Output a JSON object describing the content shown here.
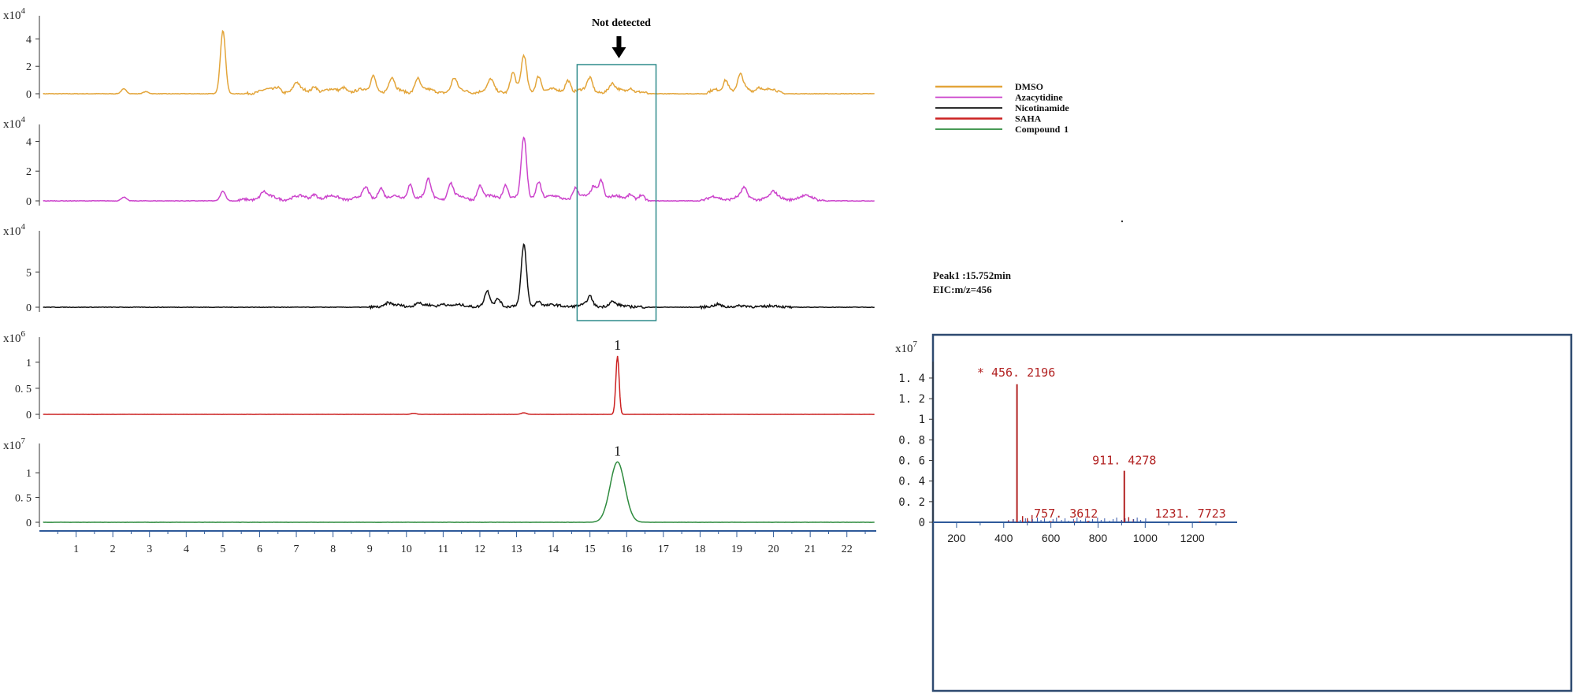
{
  "chart_data": [
    {
      "type": "line",
      "subtype": "stacked-chromatograms",
      "x_ticks": [
        "1",
        "2",
        "3",
        "4",
        "5",
        "6",
        "7",
        "8",
        "9",
        "10",
        "11",
        "12",
        "13",
        "14",
        "15",
        "16",
        "17",
        "18",
        "19",
        "20",
        "21",
        "22"
      ],
      "xlim": [
        0,
        22.8
      ],
      "traces": [
        {
          "name": "DMSO",
          "color": "#E3A53A",
          "scale_label": "x10",
          "scale_exp": "4",
          "y_ticks": [
            "0",
            "2",
            "4"
          ],
          "ylim": [
            0,
            5
          ],
          "peaks": [
            {
              "x": 2.3,
              "y": 0.35
            },
            {
              "x": 2.9,
              "y": 0.15
            },
            {
              "x": 5.0,
              "y": 4.6
            },
            {
              "x": 6.5,
              "y": 0.3
            },
            {
              "x": 7.0,
              "y": 0.55
            },
            {
              "x": 7.5,
              "y": 0.45
            },
            {
              "x": 8.3,
              "y": 0.35
            },
            {
              "x": 9.1,
              "y": 1.15
            },
            {
              "x": 9.6,
              "y": 0.9
            },
            {
              "x": 10.3,
              "y": 0.95
            },
            {
              "x": 11.3,
              "y": 0.85
            },
            {
              "x": 12.3,
              "y": 0.75
            },
            {
              "x": 12.9,
              "y": 1.35
            },
            {
              "x": 13.2,
              "y": 2.5
            },
            {
              "x": 13.6,
              "y": 1.2
            },
            {
              "x": 14.4,
              "y": 0.9
            },
            {
              "x": 15.0,
              "y": 0.9
            },
            {
              "x": 15.6,
              "y": 0.45
            },
            {
              "x": 16.1,
              "y": 0.35
            },
            {
              "x": 18.7,
              "y": 0.9
            },
            {
              "x": 19.1,
              "y": 1.0
            },
            {
              "x": 19.6,
              "y": 0.4
            }
          ],
          "humps": [
            {
              "from": 5.6,
              "to": 16.6,
              "y": 0.35
            },
            {
              "from": 18.1,
              "to": 20.3,
              "y": 0.45
            }
          ]
        },
        {
          "name": "Azacytidine",
          "color": "#CC44CC",
          "scale_label": "x10",
          "scale_exp": "4",
          "y_ticks": [
            "0",
            "2",
            "4"
          ],
          "ylim": [
            0,
            4.5
          ],
          "peaks": [
            {
              "x": 2.3,
              "y": 0.25
            },
            {
              "x": 5.0,
              "y": 0.65
            },
            {
              "x": 6.1,
              "y": 0.35
            },
            {
              "x": 7.5,
              "y": 0.35
            },
            {
              "x": 8.9,
              "y": 0.6
            },
            {
              "x": 9.3,
              "y": 0.8
            },
            {
              "x": 10.1,
              "y": 1.0
            },
            {
              "x": 10.6,
              "y": 1.15
            },
            {
              "x": 11.2,
              "y": 1.0
            },
            {
              "x": 12.0,
              "y": 0.85
            },
            {
              "x": 12.7,
              "y": 1.0
            },
            {
              "x": 13.2,
              "y": 4.0
            },
            {
              "x": 13.6,
              "y": 1.2
            },
            {
              "x": 14.6,
              "y": 0.7
            },
            {
              "x": 15.1,
              "y": 0.8
            },
            {
              "x": 15.3,
              "y": 1.3
            },
            {
              "x": 16.1,
              "y": 0.35
            },
            {
              "x": 16.4,
              "y": 0.25
            },
            {
              "x": 19.2,
              "y": 0.55
            },
            {
              "x": 20.0,
              "y": 0.3
            }
          ],
          "humps": [
            {
              "from": 5.4,
              "to": 16.6,
              "y": 0.35
            },
            {
              "from": 18.0,
              "to": 21.5,
              "y": 0.35
            }
          ]
        },
        {
          "name": "Nicotinamide",
          "color": "#111111",
          "scale_label": "x10",
          "scale_exp": "4",
          "y_ticks": [
            "0",
            "5"
          ],
          "ylim": [
            0,
            9.5
          ],
          "peaks": [
            {
              "x": 9.5,
              "y": 0.4
            },
            {
              "x": 10.3,
              "y": 0.5
            },
            {
              "x": 11.0,
              "y": 0.45
            },
            {
              "x": 12.2,
              "y": 2.0
            },
            {
              "x": 12.5,
              "y": 1.0
            },
            {
              "x": 13.2,
              "y": 8.6
            },
            {
              "x": 13.6,
              "y": 0.8
            },
            {
              "x": 15.0,
              "y": 1.3
            },
            {
              "x": 15.6,
              "y": 0.5
            },
            {
              "x": 18.5,
              "y": 0.3
            }
          ],
          "humps": [
            {
              "from": 9.0,
              "to": 16.5,
              "y": 0.35
            },
            {
              "from": 18.0,
              "to": 20.5,
              "y": 0.2
            }
          ]
        },
        {
          "name": "SAHA",
          "color": "#CC2222",
          "scale_label": "x10",
          "scale_exp": "6",
          "y_ticks": [
            "0",
            "0. 5",
            "1"
          ],
          "ylim": [
            0,
            1.3
          ],
          "peak_label": "1",
          "peaks": [
            {
              "x": 10.2,
              "y": 0.02
            },
            {
              "x": 13.2,
              "y": 0.03
            },
            {
              "x": 15.75,
              "y": 1.12
            }
          ],
          "humps": []
        },
        {
          "name": "Compound 1",
          "color": "#2E8B3E",
          "scale_label": "x10",
          "scale_exp": "7",
          "y_ticks": [
            "0",
            "0. 5",
            "1"
          ],
          "ylim": [
            0,
            1.4
          ],
          "peak_label": "1",
          "peaks": [
            {
              "x": 15.75,
              "y": 1.22
            }
          ],
          "humps": []
        }
      ],
      "box_annotation": {
        "x_from": 14.65,
        "x_to": 16.8,
        "label": "Not detected",
        "color": "#2E8B8B"
      },
      "legend": {
        "placement": "right",
        "entries": [
          {
            "label": "DMSO",
            "color": "#E3A53A"
          },
          {
            "label": "Azacytidine",
            "color": "#CC44CC"
          },
          {
            "label": "Nicotinamide",
            "color": "#111111"
          },
          {
            "label": "SAHA",
            "color": "#CC2222"
          },
          {
            "label": "Compound  1",
            "color": "#2E8B3E"
          }
        ]
      },
      "peak_info": [
        "Peak1 :15.752min",
        "EIC:m/z=456"
      ]
    },
    {
      "type": "bar",
      "subtype": "mass-spectrum",
      "scale_label": "x10",
      "scale_exp": "7",
      "x_ticks": [
        "200",
        "400",
        "600",
        "800",
        "1000",
        "1200"
      ],
      "xlim": [
        100,
        1390
      ],
      "y_ticks": [
        "0",
        "0. 2",
        "0. 4",
        "0. 6",
        "0. 8",
        "1",
        "1. 2",
        "1. 4"
      ],
      "ylim": [
        0,
        1.56
      ],
      "peaks": [
        {
          "mz": 456.2196,
          "intensity": 1.34,
          "label": "* 456. 2196"
        },
        {
          "mz": 911.4278,
          "intensity": 0.5,
          "label": "911. 4278"
        },
        {
          "mz": 757.3612,
          "intensity": 0.012,
          "label": "757. 3612"
        },
        {
          "mz": 1231.7723,
          "intensity": 0.008,
          "label": "1231. 7723"
        }
      ],
      "minor_peaks": [
        {
          "mz": 480,
          "intensity": 0.06
        },
        {
          "mz": 500,
          "intensity": 0.04
        },
        {
          "mz": 520,
          "intensity": 0.07
        },
        {
          "mz": 440,
          "intensity": 0.03
        },
        {
          "mz": 420,
          "intensity": 0.02
        },
        {
          "mz": 930,
          "intensity": 0.05
        },
        {
          "mz": 950,
          "intensity": 0.03
        },
        {
          "mz": 900,
          "intensity": 0.02
        },
        {
          "mz": 600,
          "intensity": 0.01
        },
        {
          "mz": 700,
          "intensity": 0.01
        }
      ],
      "label_color": "#B22222"
    }
  ]
}
